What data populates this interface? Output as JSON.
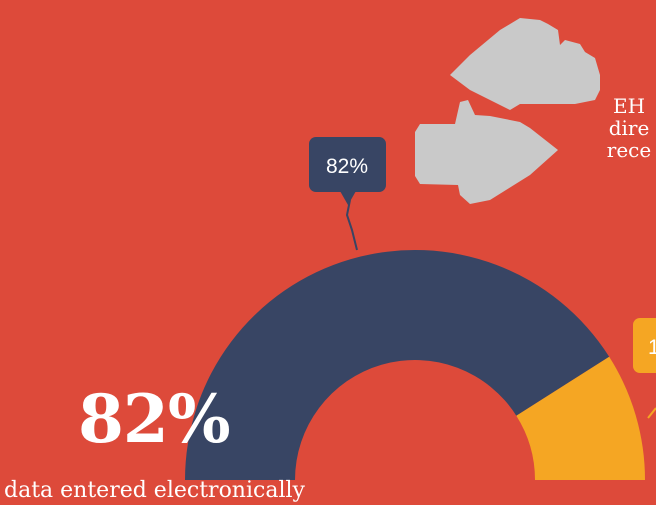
{
  "colors": {
    "background": "#DD4A3A",
    "navy": "#384564",
    "orange": "#F5A623",
    "arrow_gray": "#C9C9C9",
    "text": "#FFFFFF"
  },
  "icons": [
    "arrow-left-icon",
    "arrow-right-icon"
  ],
  "headline": {
    "value": "82%",
    "caption": "data entered electronically"
  },
  "side_text_lines": [
    "EH",
    "dire",
    "rece"
  ],
  "chart_data": {
    "type": "pie",
    "variant": "half-donut",
    "slices": [
      {
        "label": "82%",
        "value": 82,
        "color": "#384564"
      },
      {
        "label": "1",
        "value": 18,
        "color": "#F5A623"
      }
    ]
  }
}
